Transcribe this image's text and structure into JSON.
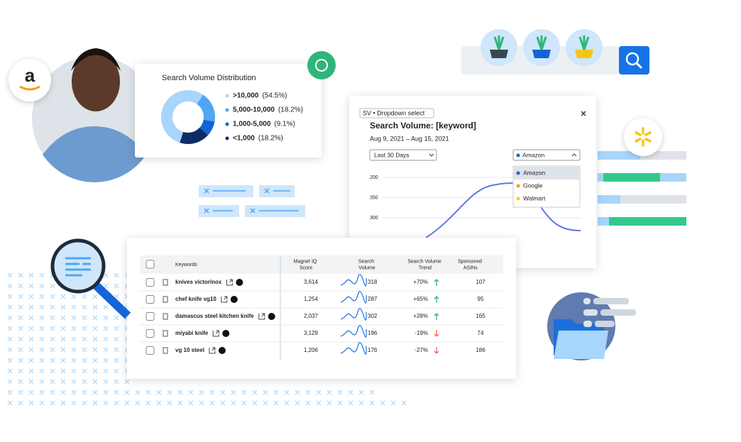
{
  "distribution": {
    "title": "Search Volume Distribution",
    "items": [
      {
        "label": ">10,000",
        "value": 54.5,
        "value_label": "(54.5%)",
        "color": "#a8d5fb"
      },
      {
        "label": "5,000-10,000",
        "value": 18.2,
        "value_label": "(18.2%)",
        "color": "#4fa6f2"
      },
      {
        "label": "1,000-5,000",
        "value": 9.1,
        "value_label": "(9.1%)",
        "color": "#1463d6"
      },
      {
        "label": "<1,000",
        "value": 18.2,
        "value_label": "(18.2%)",
        "color": "#0e2b66"
      }
    ]
  },
  "volume_card": {
    "tag": "SV • Dropdown select",
    "title": "Search Volume: [keyword]",
    "dates": "Aug 9, 2021 – Aug 15, 2021",
    "range_select": "Last 30 Days",
    "source_select": "Amazon",
    "options": [
      {
        "label": "Amazon",
        "color": "#1565d8"
      },
      {
        "label": "Google",
        "color": "#f59e0b"
      },
      {
        "label": "Walmart",
        "color": "#facc15"
      }
    ],
    "y_labels": [
      "200",
      "350",
      "300"
    ]
  },
  "table": {
    "headers": [
      "Keywords",
      "Magnet IQ Score",
      "Search Volume",
      "Search Volume Trend",
      "Sponsored ASINs"
    ],
    "rows": [
      [
        "knives victorinox",
        "3,614",
        "318",
        "+70%",
        "107"
      ],
      [
        "chef knife vg10",
        "1,254",
        "287",
        "+65%",
        "95"
      ],
      [
        "damascus steel kitchen knife",
        "2,037",
        "302",
        "+28%",
        "165"
      ],
      [
        "miyabi knife",
        "3,129",
        "196",
        "-19%",
        "74"
      ],
      [
        "vg 10 steel",
        "1,206",
        "176",
        "-27%",
        "186"
      ]
    ]
  }
}
